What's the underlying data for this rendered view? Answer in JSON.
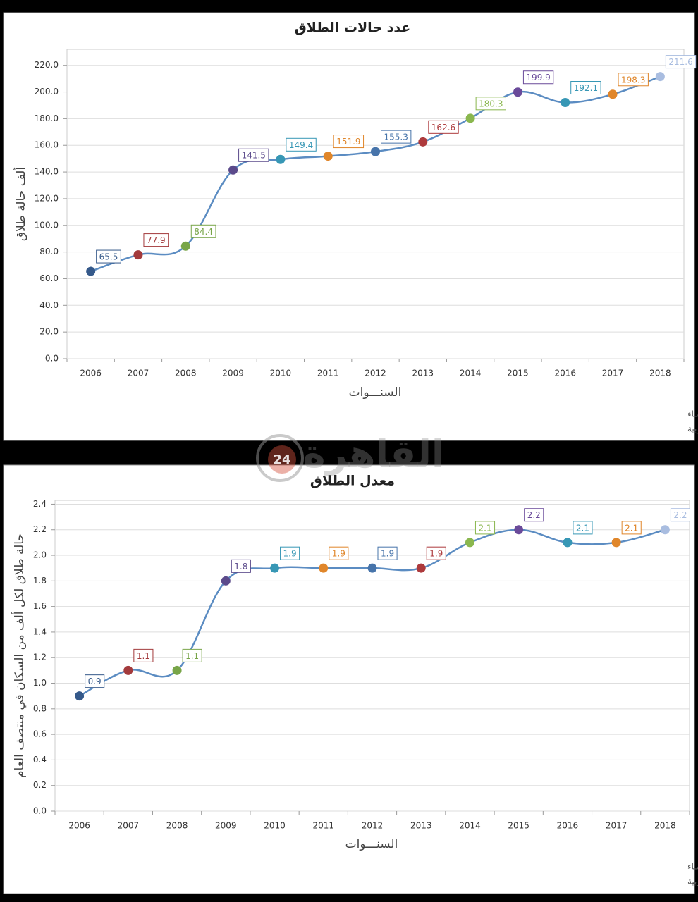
{
  "chart_data": [
    {
      "type": "line",
      "title": "عدد حالات الطلاق",
      "y_label": "ألف حالة طلاق",
      "x_label": "السنـــوات",
      "categories": [
        "2006",
        "2007",
        "2008",
        "2009",
        "2010",
        "2011",
        "2012",
        "2013",
        "2014",
        "2015",
        "2016",
        "2017",
        "2018"
      ],
      "values": [
        65.5,
        77.9,
        84.4,
        141.5,
        149.4,
        151.9,
        155.3,
        162.6,
        180.3,
        199.9,
        192.1,
        198.3,
        211.6
      ],
      "point_colors": [
        "#35598a",
        "#a33a3c",
        "#78a548",
        "#5b4a8b",
        "#3797b5",
        "#e0862a",
        "#4774aa",
        "#ad3a3c",
        "#8ab74e",
        "#6a4a9a",
        "#3797b5",
        "#e0862a",
        "#a9bde0"
      ],
      "line_color": "#5b8cc2",
      "ylim": [
        0,
        232
      ],
      "yticks": [
        {
          "value": 0,
          "label": "0.0"
        },
        {
          "value": 20,
          "label": "20.0"
        },
        {
          "value": 40,
          "label": "40.0"
        },
        {
          "value": 60,
          "label": "60.0"
        },
        {
          "value": 80,
          "label": "80.0"
        },
        {
          "value": 100,
          "label": "100.0"
        },
        {
          "value": 120,
          "label": "120.0"
        },
        {
          "value": 140,
          "label": "140.0"
        },
        {
          "value": 160,
          "label": "160.0"
        },
        {
          "value": 180,
          "label": "180.0"
        },
        {
          "value": 200,
          "label": "200.0"
        },
        {
          "value": 220,
          "label": "220.0"
        }
      ],
      "grid": true,
      "notes": [
        "حقوق الملكية للجهـاز المركزي للتعبئة العـامة والأحصـاء",
        "المصدر الأساسي للأحصاءات الرسمية لجمهورية مصر العربية"
      ]
    },
    {
      "type": "line",
      "title": "معدل الطلاق",
      "y_label": "حالة طلاق لكل ألف من السكان في منتصف العام",
      "x_label": "السنـــوات",
      "categories": [
        "2006",
        "2007",
        "2008",
        "2009",
        "2010",
        "2011",
        "2012",
        "2013",
        "2014",
        "2015",
        "2016",
        "2017",
        "2018"
      ],
      "values": [
        0.9,
        1.1,
        1.1,
        1.8,
        1.9,
        1.9,
        1.9,
        1.9,
        2.1,
        2.2,
        2.1,
        2.1,
        2.2
      ],
      "point_colors": [
        "#35598a",
        "#a33a3c",
        "#78a548",
        "#5b4a8b",
        "#3797b5",
        "#e0862a",
        "#4774aa",
        "#ad3a3c",
        "#8ab74e",
        "#6a4a9a",
        "#3797b5",
        "#e0862a",
        "#a9bde0"
      ],
      "line_color": "#5b8cc2",
      "ylim": [
        0,
        2.43
      ],
      "yticks": [
        {
          "value": 0,
          "label": "0.0"
        },
        0.2,
        0.4,
        0.6,
        0.8,
        {
          "value": 1,
          "label": "1.0"
        },
        1.2,
        1.4,
        1.6,
        1.8,
        {
          "value": 2,
          "label": "2.0"
        },
        2.2,
        2.4
      ],
      "grid": true,
      "notes": [
        "حقوق الملكية للجهـاز المركزي للتعبئة العـامة والأحصـاء",
        "المصدر الأساسي للأحصاءات الرسمية لجمهورية مصر العربية"
      ]
    }
  ],
  "watermark": {
    "name": "القاهرة",
    "badge": "24"
  }
}
